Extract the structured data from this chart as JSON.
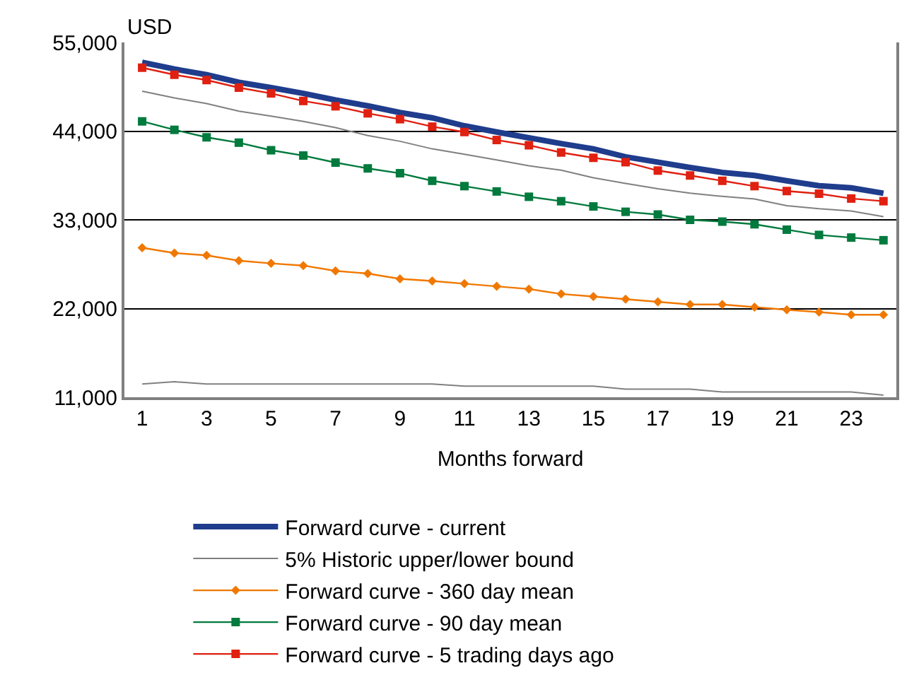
{
  "chart_data": {
    "type": "line",
    "ylabel": "USD",
    "xlabel": "Months forward",
    "x": [
      1,
      2,
      3,
      4,
      5,
      6,
      7,
      8,
      9,
      10,
      11,
      12,
      13,
      14,
      15,
      16,
      17,
      18,
      19,
      20,
      21,
      22,
      23,
      24
    ],
    "xlim": [
      0.45,
      24.4
    ],
    "xticks": [
      1,
      3,
      5,
      7,
      9,
      11,
      13,
      15,
      17,
      19,
      21,
      23
    ],
    "ylim": [
      11000,
      55000
    ],
    "yticks": [
      {
        "value": 11000,
        "label": "11,000"
      },
      {
        "value": 22000,
        "label": "22,000"
      },
      {
        "value": 33000,
        "label": "33,000"
      },
      {
        "value": 44000,
        "label": "44,000"
      },
      {
        "value": 55000,
        "label": "55,000"
      }
    ],
    "grid": "y",
    "legend": "bottom",
    "series": [
      {
        "name": "Forward curve - current",
        "color": "#1f3d8c",
        "marker": "none",
        "values": [
          52525,
          51700,
          50990,
          50050,
          49390,
          48680,
          47855,
          47130,
          46305,
          45645,
          44655,
          43890,
          43170,
          42460,
          41800,
          40810,
          40150,
          39490,
          38880,
          38500,
          37840,
          37230,
          36960,
          36300
        ]
      },
      {
        "name": "5% Historic upper/lower bound",
        "color": "#808080",
        "marker": "none",
        "values": [
          48950,
          48120,
          47410,
          46470,
          45870,
          45210,
          44440,
          43450,
          42740,
          41800,
          41140,
          40430,
          39700,
          39160,
          38220,
          37510,
          36850,
          36300,
          35910,
          35580,
          34750,
          34380,
          34100,
          33390
        ]
      },
      {
        "name": "Forward curve - 360 day mean",
        "color": "#f07800",
        "marker": "diamond",
        "values": [
          29540,
          28880,
          28600,
          27940,
          27600,
          27330,
          26670,
          26340,
          25680,
          25420,
          25080,
          24750,
          24420,
          23810,
          23490,
          23160,
          22830,
          22500,
          22500,
          22170,
          21840,
          21560,
          21230,
          21230
        ]
      },
      {
        "name": "Forward curve - 90 day mean",
        "color": "#007a3d",
        "marker": "square",
        "values": [
          45210,
          44160,
          43230,
          42570,
          41630,
          40970,
          40100,
          39380,
          38780,
          37840,
          37180,
          36520,
          35860,
          35310,
          34660,
          34000,
          33660,
          33000,
          32780,
          32450,
          31780,
          31130,
          30800,
          30470
        ]
      },
      {
        "name": "Forward curve - 5 trading days ago",
        "color": "#e02010",
        "marker": "square",
        "values": [
          51865,
          50990,
          50330,
          49390,
          48680,
          47740,
          47080,
          46205,
          45480,
          44555,
          43890,
          42900,
          42245,
          41350,
          40690,
          40150,
          39110,
          38500,
          37840,
          37180,
          36570,
          36240,
          35640,
          35310
        ]
      },
      {
        "color": "#808080",
        "marker": "none",
        "values": [
          12650,
          12920,
          12650,
          12650,
          12650,
          12650,
          12650,
          12650,
          12650,
          12650,
          12380,
          12380,
          12380,
          12380,
          12380,
          12000,
          12000,
          12000,
          11660,
          11660,
          11660,
          11660,
          11660,
          11270
        ]
      }
    ]
  }
}
